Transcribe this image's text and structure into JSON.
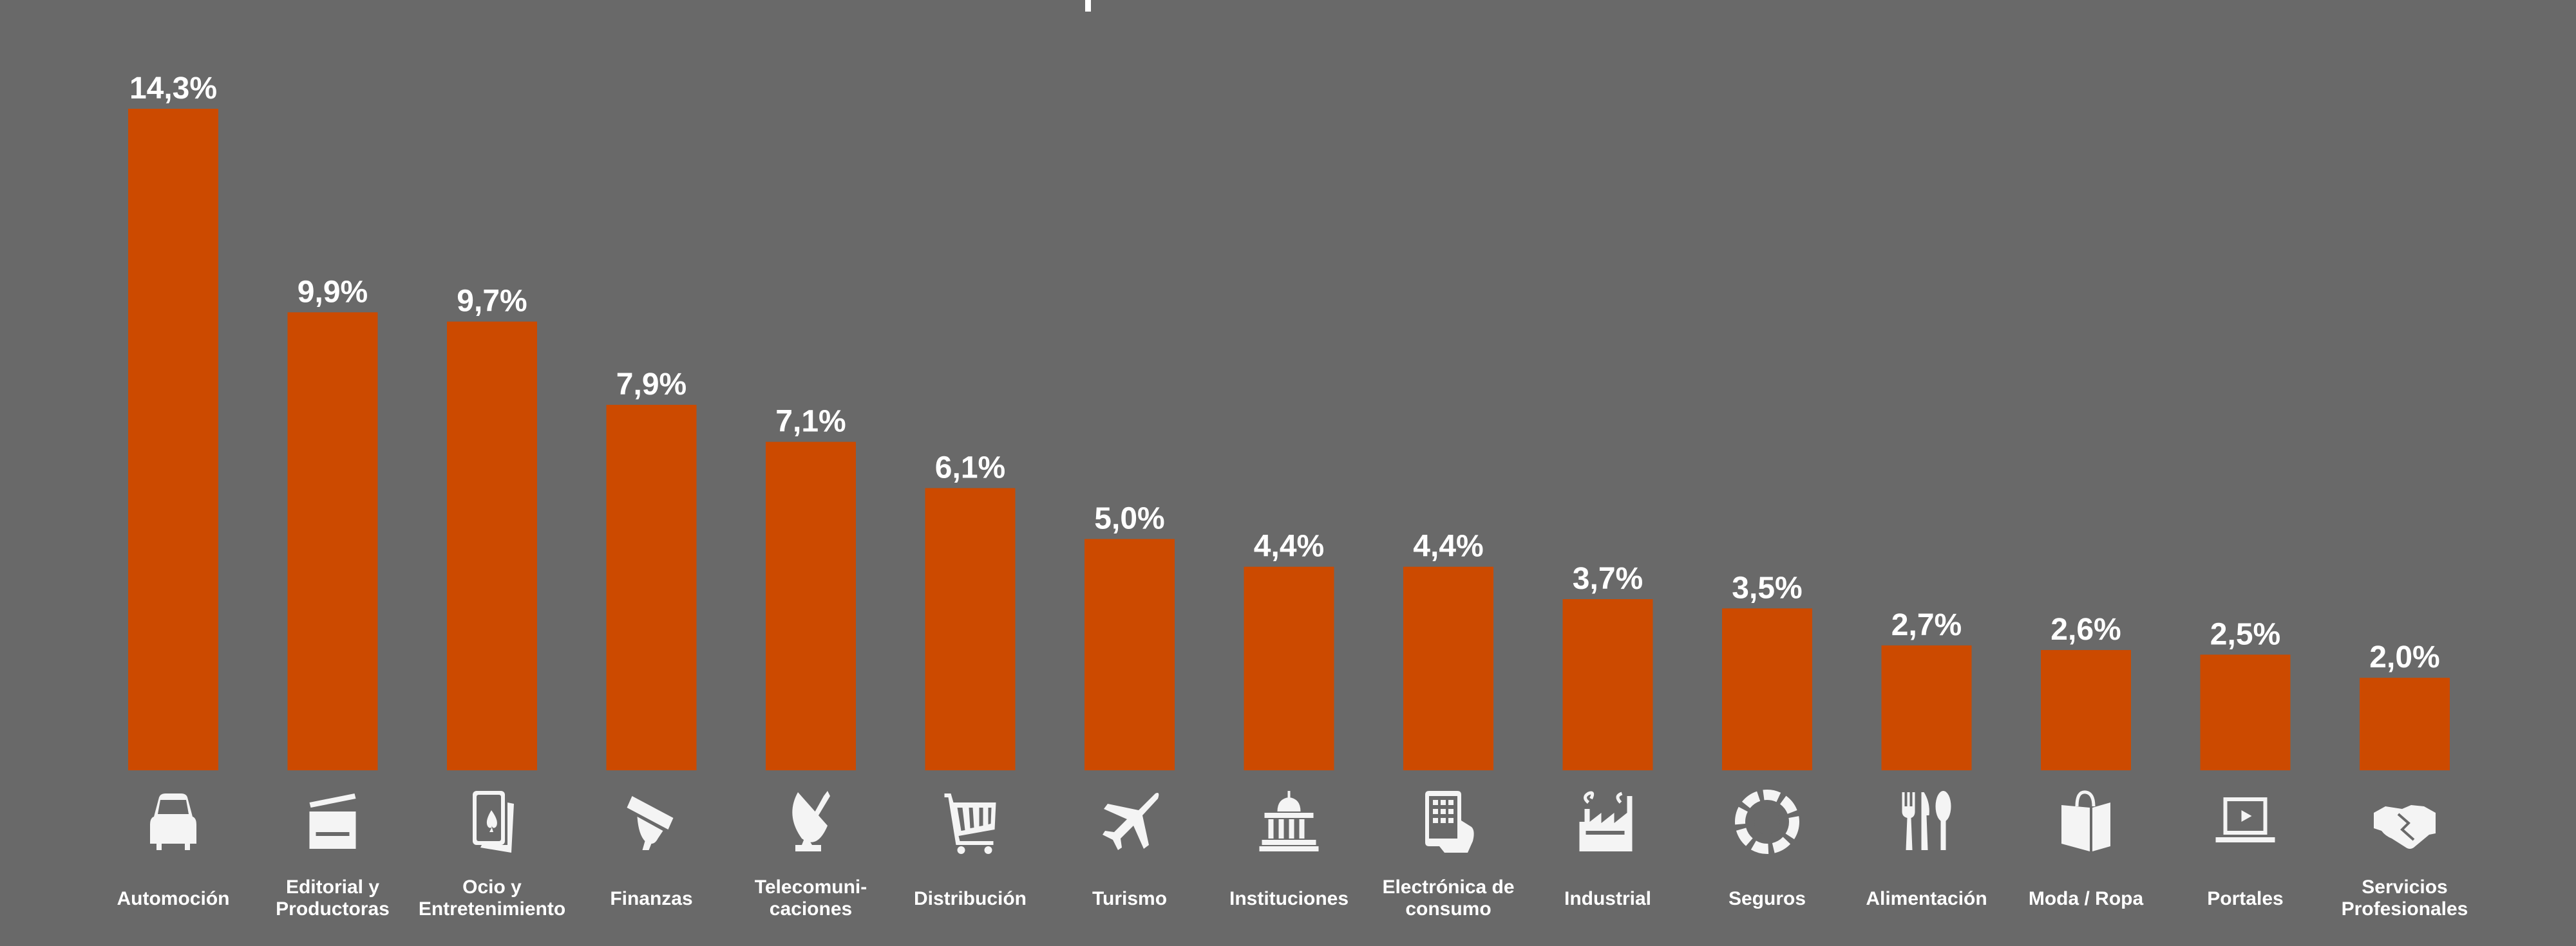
{
  "chart_data": {
    "type": "bar",
    "title": "",
    "xlabel": "",
    "ylabel": "",
    "ylim": [
      0,
      14.3
    ],
    "grid": false,
    "legend": "none",
    "categories": [
      [
        "Automoción"
      ],
      [
        "Editorial y",
        "Productoras"
      ],
      [
        "Ocio y",
        "Entretenimiento"
      ],
      [
        "Finanzas"
      ],
      [
        "Telecomuni-",
        "caciones"
      ],
      [
        "Distribución"
      ],
      [
        "Turismo"
      ],
      [
        "Instituciones"
      ],
      [
        "Electrónica de",
        "consumo"
      ],
      [
        "Industrial"
      ],
      [
        "Seguros"
      ],
      [
        "Alimentación"
      ],
      [
        "Moda / Ropa"
      ],
      [
        "Portales"
      ],
      [
        "Servicios",
        "Profesionales"
      ]
    ],
    "values": [
      14.3,
      9.9,
      9.7,
      7.9,
      7.1,
      6.1,
      5.0,
      4.4,
      4.4,
      3.7,
      3.5,
      2.7,
      2.6,
      2.5,
      2.0
    ],
    "value_labels": [
      "14,3%",
      "9,9%",
      "9,7%",
      "7,9%",
      "7,1%",
      "6,1%",
      "5,0%",
      "4,4%",
      "4,4%",
      "3,7%",
      "3,5%",
      "2,7%",
      "2,6%",
      "2,5%",
      "2,0%"
    ],
    "icons": [
      "car-icon",
      "clapperboard-icon",
      "playing-cards-icon",
      "credit-card-icon",
      "satellite-dish-icon",
      "shopping-cart-icon",
      "airplane-icon",
      "government-building-icon",
      "touch-phone-icon",
      "factory-icon",
      "lifebuoy-icon",
      "cutlery-icon",
      "shopping-bag-icon",
      "laptop-icon",
      "handshake-icon"
    ],
    "colors": {
      "bar": "#CC4A00",
      "background": "#696969",
      "text": "#FFFFFF",
      "icon": "#F4F4F4"
    }
  }
}
